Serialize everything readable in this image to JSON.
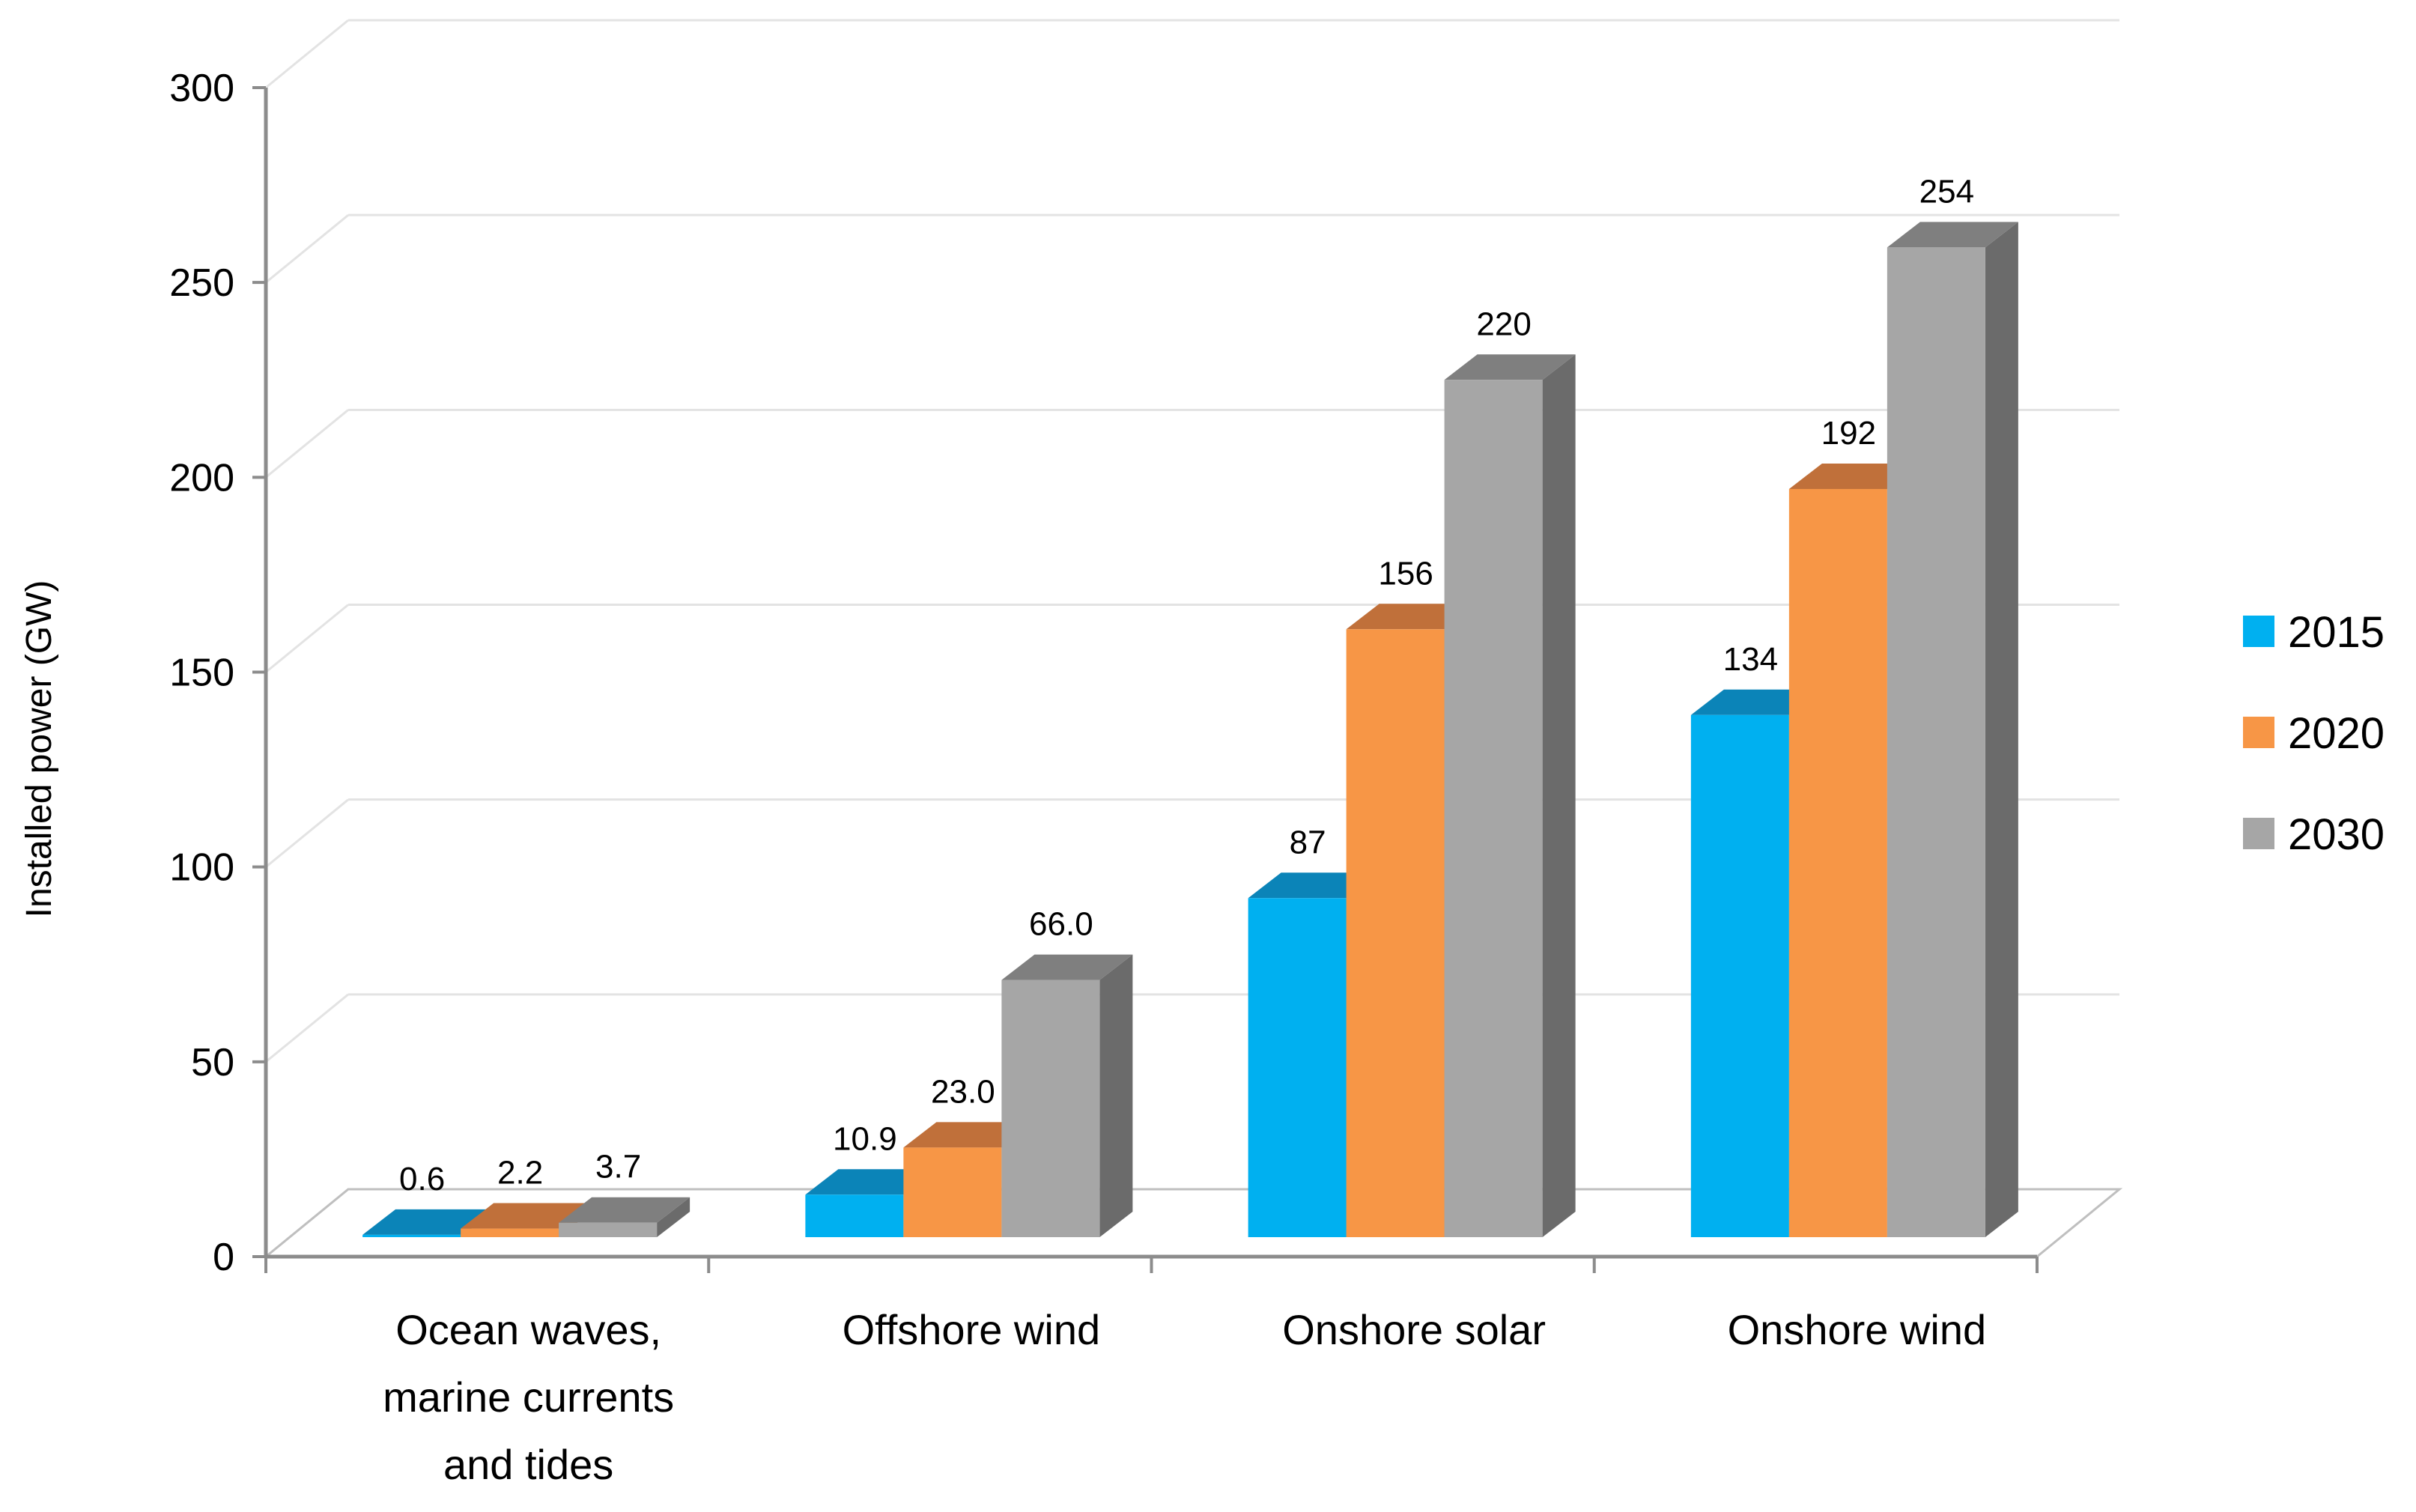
{
  "chart_data": {
    "type": "bar",
    "style": "3d-clustered-column",
    "title": "",
    "xlabel": "",
    "ylabel": "Installed power (GW)",
    "ylim": [
      0,
      300
    ],
    "yticks": [
      0,
      50,
      100,
      150,
      200,
      250,
      300
    ],
    "yticks_labels": [
      "0",
      "50",
      "100",
      "150",
      "200",
      "250",
      "300"
    ],
    "grid": true,
    "legend_position": "right",
    "categories": [
      [
        "Ocean waves,",
        "marine currents",
        "and tides"
      ],
      [
        "Offshore wind"
      ],
      [
        "Onshore solar"
      ],
      [
        "Onshore wind"
      ]
    ],
    "series": [
      {
        "name": "2015",
        "color": "#00b0f0",
        "top": "#0b84b8",
        "side": "#007fae",
        "values": [
          0.6,
          10.9,
          87,
          134
        ],
        "labels": [
          "0.6",
          "10.9",
          "87",
          "134"
        ]
      },
      {
        "name": "2020",
        "color": "#f79646",
        "top": "#c0703a",
        "side": "#b46a32",
        "values": [
          2.2,
          23.0,
          156,
          192
        ],
        "labels": [
          "2.2",
          "23.0",
          "156",
          "192"
        ]
      },
      {
        "name": "2030",
        "color": "#a6a6a6",
        "top": "#7f7f7f",
        "side": "#6b6b6b",
        "values": [
          3.7,
          66.0,
          220,
          254
        ],
        "labels": [
          "3.7",
          "66.0",
          "220",
          "254"
        ]
      }
    ]
  }
}
